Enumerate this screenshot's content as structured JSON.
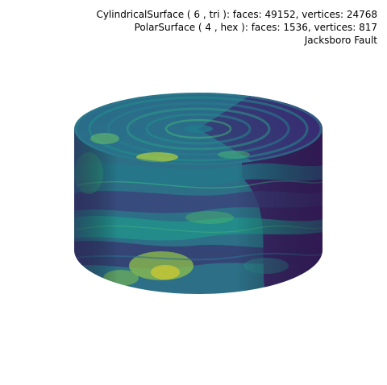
{
  "annotations": {
    "line1": "CylindricalSurface ( 6 , tri ):  faces: 49152,  vertices: 24768",
    "line2": "PolarSurface ( 4 , hex ):  faces: 1536,  vertices: 817",
    "line3": "Jacksboro Fault"
  },
  "colormap": [
    "#440154",
    "#3b528b",
    "#21908c",
    "#5dc863",
    "#fde725"
  ]
}
